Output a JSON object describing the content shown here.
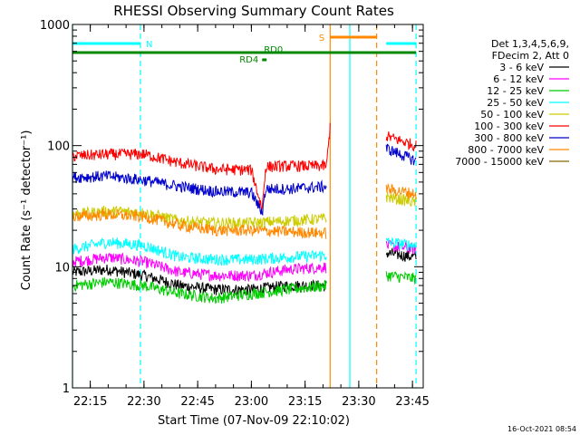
{
  "chart_data": {
    "type": "line",
    "title": "RHESSI Observing Summary Count Rates",
    "xlabel": "Start Time (07-Nov-09 22:10:02)",
    "ylabel": "Count Rate (s⁻¹ detector⁻¹)",
    "y_scale": "log",
    "ylim": [
      1,
      1000
    ],
    "xlim": [
      "22:10:02",
      "23:48:00"
    ],
    "x_ticks": [
      "22:15",
      "22:30",
      "22:45",
      "23:00",
      "23:15",
      "23:30",
      "23:45"
    ],
    "y_ticks": [
      "1",
      "10",
      "100",
      "1000"
    ],
    "legend": {
      "position": "right",
      "header": [
        "Det 1,3,4,5,6,9,",
        "FDecim 2, Att 0"
      ]
    },
    "timestamp": "16-Oct-2021 08:54",
    "data_gap": [
      "23:22:10",
      "23:37:40"
    ],
    "series": [
      {
        "name": "3 - 6 keV",
        "color": "#000000",
        "points": [
          [
            "22:10:02",
            9
          ],
          [
            "22:20:00",
            9.5
          ],
          [
            "22:30:00",
            8.5
          ],
          [
            "22:40:00",
            7
          ],
          [
            "22:50:00",
            6.5
          ],
          [
            "23:00:00",
            6.5
          ],
          [
            "23:10:00",
            7
          ],
          [
            "23:21:00",
            7
          ],
          [
            "23:37:40",
            13
          ],
          [
            "23:46:00",
            12
          ]
        ]
      },
      {
        "name": "6 - 12 keV",
        "color": "#ff00ff",
        "points": [
          [
            "22:10:02",
            11
          ],
          [
            "22:20:00",
            12
          ],
          [
            "22:30:00",
            11
          ],
          [
            "22:40:00",
            9
          ],
          [
            "22:50:00",
            8.5
          ],
          [
            "23:00:00",
            8.5
          ],
          [
            "23:10:00",
            9.5
          ],
          [
            "23:21:00",
            10
          ],
          [
            "23:37:40",
            15
          ],
          [
            "23:46:00",
            14
          ]
        ]
      },
      {
        "name": "12 - 25 keV",
        "color": "#00cc00",
        "points": [
          [
            "22:10:02",
            7
          ],
          [
            "22:20:00",
            7.5
          ],
          [
            "22:30:00",
            7
          ],
          [
            "22:40:00",
            6
          ],
          [
            "22:50:00",
            5.5
          ],
          [
            "23:00:00",
            6
          ],
          [
            "23:10:00",
            6.5
          ],
          [
            "23:21:00",
            7
          ],
          [
            "23:37:40",
            8.5
          ],
          [
            "23:46:00",
            8
          ]
        ]
      },
      {
        "name": "25 - 50 keV",
        "color": "#00ffff",
        "points": [
          [
            "22:10:02",
            14
          ],
          [
            "22:20:00",
            16
          ],
          [
            "22:30:00",
            15
          ],
          [
            "22:40:00",
            12
          ],
          [
            "22:50:00",
            11.5
          ],
          [
            "23:00:00",
            11.5
          ],
          [
            "23:10:00",
            12
          ],
          [
            "23:21:00",
            12.5
          ],
          [
            "23:37:40",
            16
          ],
          [
            "23:46:00",
            15
          ]
        ]
      },
      {
        "name": "50 - 100 keV",
        "color": "#cccc00",
        "points": [
          [
            "22:10:02",
            27
          ],
          [
            "22:20:00",
            29
          ],
          [
            "22:30:00",
            28
          ],
          [
            "22:40:00",
            24
          ],
          [
            "22:50:00",
            23
          ],
          [
            "23:00:00",
            23
          ],
          [
            "23:10:00",
            24
          ],
          [
            "23:21:00",
            25
          ],
          [
            "23:37:40",
            38
          ],
          [
            "23:46:00",
            34
          ]
        ]
      },
      {
        "name": "100 - 300 keV",
        "color": "#ff0000",
        "points": [
          [
            "22:10:02",
            82
          ],
          [
            "22:20:00",
            85
          ],
          [
            "22:30:00",
            85
          ],
          [
            "22:40:00",
            72
          ],
          [
            "22:50:00",
            64
          ],
          [
            "23:00:00",
            63
          ],
          [
            "23:03:00",
            30
          ],
          [
            "23:04:00",
            67
          ],
          [
            "23:10:00",
            68
          ],
          [
            "23:21:00",
            68
          ],
          [
            "23:22:00",
            145
          ],
          [
            "23:37:40",
            120
          ],
          [
            "23:46:00",
            100
          ]
        ]
      },
      {
        "name": "300 - 800 keV",
        "color": "#0000cc",
        "points": [
          [
            "22:10:02",
            55
          ],
          [
            "22:20:00",
            56
          ],
          [
            "22:30:00",
            52
          ],
          [
            "22:40:00",
            46
          ],
          [
            "22:50:00",
            42
          ],
          [
            "23:00:00",
            41
          ],
          [
            "23:03:00",
            28
          ],
          [
            "23:04:00",
            44
          ],
          [
            "23:10:00",
            44
          ],
          [
            "23:21:00",
            46
          ],
          [
            "23:37:40",
            95
          ],
          [
            "23:46:00",
            75
          ]
        ]
      },
      {
        "name": "800 - 7000 keV",
        "color": "#ff8800",
        "points": [
          [
            "22:10:02",
            26
          ],
          [
            "22:20:00",
            27
          ],
          [
            "22:30:00",
            26
          ],
          [
            "22:40:00",
            22
          ],
          [
            "22:50:00",
            20
          ],
          [
            "23:00:00",
            20
          ],
          [
            "23:10:00",
            19.5
          ],
          [
            "23:21:00",
            19
          ],
          [
            "23:37:40",
            44
          ],
          [
            "23:46:00",
            40
          ]
        ]
      },
      {
        "name": "7000 - 15000 keV",
        "color": "#886600",
        "points": []
      }
    ],
    "flag_bars": [
      {
        "label": "N",
        "color": "#00ffff",
        "segments": [
          [
            "22:10:02",
            "22:29:00"
          ],
          [
            "23:37:40",
            "23:46:00"
          ]
        ]
      },
      {
        "label": "S",
        "color": "#ff8800",
        "segments": [
          [
            "23:22:00",
            "23:35:00"
          ]
        ]
      },
      {
        "label": "RD0",
        "color": "#008800",
        "segments": [
          [
            "22:10:02",
            "23:46:00"
          ]
        ]
      },
      {
        "label": "RD4",
        "color": "#008800",
        "segments": [
          [
            "23:03:00",
            "23:03:30"
          ]
        ]
      }
    ],
    "vertical_lines": [
      {
        "time": "22:10:02",
        "color": "#00ffff",
        "style": "solid"
      },
      {
        "time": "22:29:00",
        "color": "#00ffff",
        "style": "dashed"
      },
      {
        "time": "23:22:00",
        "color": "#ff8800",
        "style": "solid"
      },
      {
        "time": "23:27:30",
        "color": "#00ffff",
        "style": "solid"
      },
      {
        "time": "23:35:00",
        "color": "#ff8800",
        "style": "dashed"
      },
      {
        "time": "23:46:00",
        "color": "#00ffff",
        "style": "dashed"
      }
    ]
  }
}
